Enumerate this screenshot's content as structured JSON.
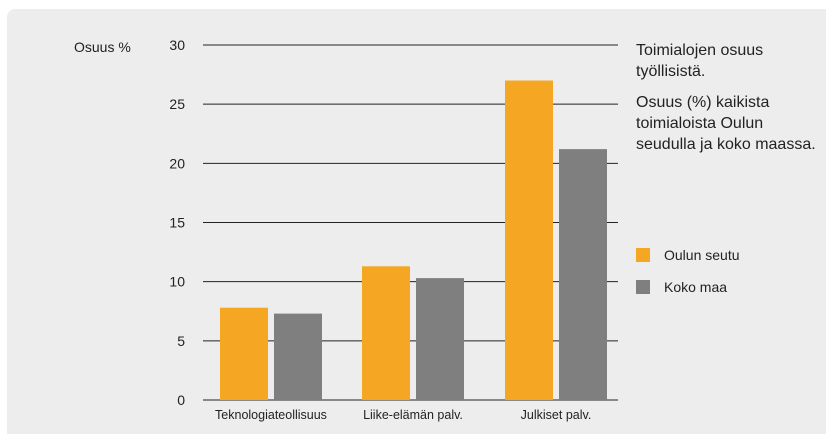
{
  "chart_data": {
    "type": "bar",
    "title": "Toimialojen osuus työllisistä.",
    "subtitle": "Osuus (%) kaikista toimialoista Oulun seudulla ja koko maassa.",
    "ylabel": "Osuus %",
    "xlabel": "",
    "ylim": [
      0,
      30
    ],
    "yticks": [
      "0",
      "5",
      "10",
      "15",
      "20",
      "25",
      "30"
    ],
    "categories": [
      "Teknologiateollisuus",
      "Liike-elämän palv.",
      "Julkiset palv."
    ],
    "series": [
      {
        "name": "Oulun seutu",
        "color": "#f5a623",
        "values": [
          7.8,
          11.3,
          27.0
        ]
      },
      {
        "name": "Koko maa",
        "color": "#7f7f7f",
        "values": [
          7.3,
          10.3,
          21.2
        ]
      }
    ],
    "grid": true,
    "legend": "right"
  }
}
